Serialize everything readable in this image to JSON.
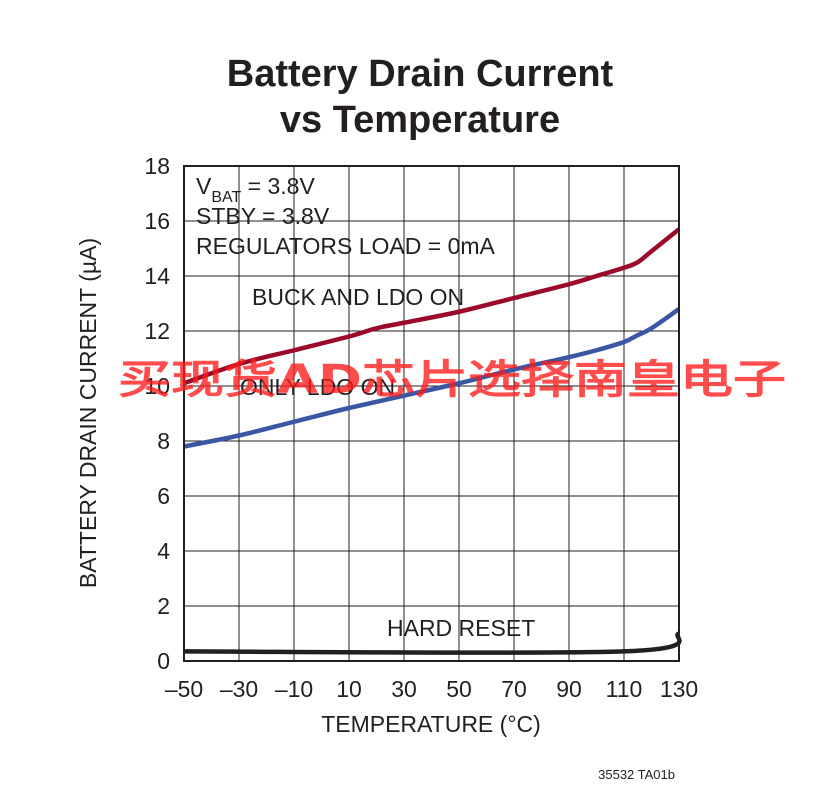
{
  "chart_data": {
    "type": "line",
    "title_line1": "Battery Drain Current",
    "title_line2": "vs Temperature",
    "xlabel": "TEMPERATURE (°C)",
    "ylabel": "BATTERY DRAIN CURRENT (µA)",
    "xlim": [
      -50,
      130
    ],
    "ylim": [
      0,
      18
    ],
    "x_ticks": [
      "–50",
      "–30",
      "–10",
      "10",
      "30",
      "50",
      "70",
      "90",
      "110",
      "130"
    ],
    "x_tick_values": [
      -50,
      -30,
      -10,
      10,
      30,
      50,
      70,
      90,
      110,
      130
    ],
    "y_ticks": [
      "0",
      "2",
      "4",
      "6",
      "8",
      "10",
      "12",
      "14",
      "16",
      "18"
    ],
    "y_tick_values": [
      0,
      2,
      4,
      6,
      8,
      10,
      12,
      14,
      16,
      18
    ],
    "grid": true,
    "conditions": {
      "vbat_main": "V",
      "vbat_sub": "BAT",
      "vbat_value": " = 3.8V",
      "stby": "STBY = 3.8V",
      "load": "REGULATORS LOAD = 0mA"
    },
    "series": [
      {
        "name": "BUCK AND LDO ON",
        "color": "#9b0a2b",
        "x": [
          -50,
          -30,
          -10,
          10,
          20,
          30,
          50,
          70,
          90,
          100,
          110,
          115,
          120,
          130
        ],
        "y": [
          10.1,
          10.8,
          11.3,
          11.8,
          12.1,
          12.3,
          12.7,
          13.2,
          13.7,
          14.0,
          14.3,
          14.5,
          14.9,
          15.7
        ]
      },
      {
        "name": "ONLY LDO ON",
        "color": "#3a57a4",
        "x": [
          -50,
          -30,
          -10,
          10,
          30,
          50,
          70,
          90,
          100,
          110,
          115,
          120,
          130
        ],
        "y": [
          7.8,
          8.2,
          8.7,
          9.2,
          9.65,
          10.1,
          10.6,
          11.05,
          11.3,
          11.6,
          11.85,
          12.1,
          12.8
        ]
      },
      {
        "name": "HARD RESET",
        "color": "#231f20",
        "x": [
          -50,
          110,
          130
        ],
        "y": [
          0.35,
          0.35,
          1.0
        ]
      }
    ],
    "figure_id": "35532 TA01b"
  },
  "watermark": "买现货AD芯片选择南皇电子"
}
